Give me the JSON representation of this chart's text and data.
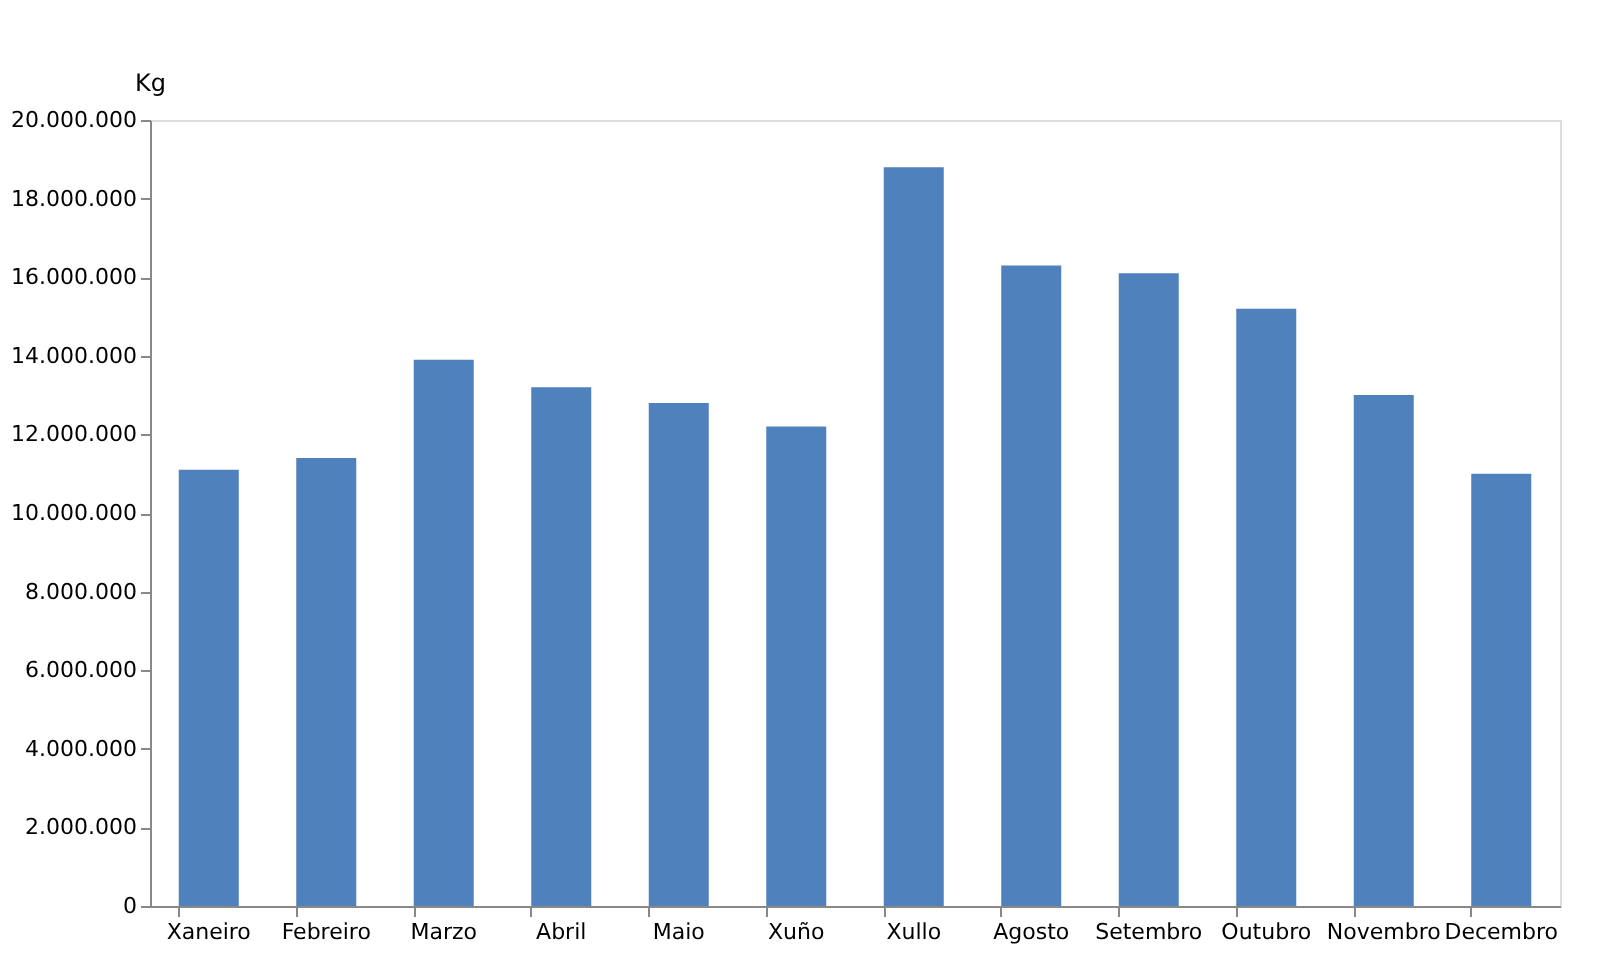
{
  "chart_data": {
    "type": "bar",
    "ylabel": "Kg",
    "categories": [
      "Xaneiro",
      "Febreiro",
      "Marzo",
      "Abril",
      "Maio",
      "Xuño",
      "Xullo",
      "Agosto",
      "Setembro",
      "Outubro",
      "Novembro",
      "Decembro"
    ],
    "values": [
      11100000,
      11400000,
      13900000,
      13200000,
      12800000,
      12200000,
      18800000,
      16300000,
      16100000,
      15200000,
      13000000,
      11000000
    ],
    "color": "#4f81bd",
    "ylim": [
      0,
      20000000
    ],
    "yticks": [
      {
        "value": 0,
        "label": "0"
      },
      {
        "value": 2000000,
        "label": "2.000.000"
      },
      {
        "value": 4000000,
        "label": "4.000.000"
      },
      {
        "value": 6000000,
        "label": "6.000.000"
      },
      {
        "value": 8000000,
        "label": "8.000.000"
      },
      {
        "value": 10000000,
        "label": "10.000.000"
      },
      {
        "value": 12000000,
        "label": "12.000.000"
      },
      {
        "value": 14000000,
        "label": "14.000.000"
      },
      {
        "value": 16000000,
        "label": "16.000.000"
      },
      {
        "value": 18000000,
        "label": "18.000.000"
      },
      {
        "value": 20000000,
        "label": "20.000.000"
      }
    ],
    "grid": false
  }
}
